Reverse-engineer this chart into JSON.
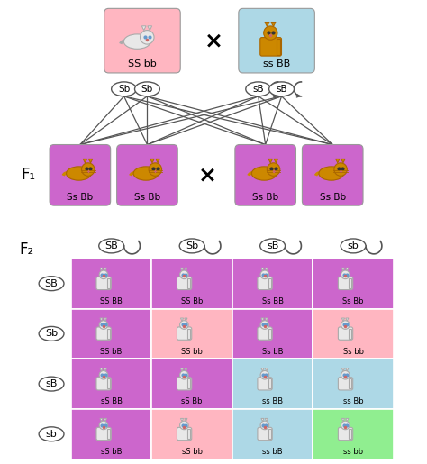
{
  "bg_color": "#ffffff",
  "parent1_color": "#ffb6c1",
  "parent2_color": "#add8e6",
  "f1_color": "#cc66cc",
  "punnett_colors": {
    "purple": "#cc66cc",
    "pink": "#ffb6c1",
    "blue": "#add8e6",
    "green": "#90ee90"
  },
  "cat_orange": "#cc8800",
  "cat_orange_dark": "#aa6600",
  "cat_white_fill": "#e8e8e8",
  "cat_white_stroke": "#aaaaaa",
  "parent1_label": "SS bb",
  "parent2_label": "ss BB",
  "f1_labels": [
    "Ss Bb",
    "Ss Bb",
    "Ss Bb",
    "Ss Bb"
  ],
  "gamete_p1": [
    "Sb",
    "Sb"
  ],
  "gamete_p2": [
    "sB",
    "sB"
  ],
  "f1_label": "F₁",
  "f2_label": "F₂",
  "col_headers": [
    "SB",
    "Sb",
    "sB",
    "sb"
  ],
  "row_headers": [
    "SB",
    "Sb",
    "sB",
    "sb"
  ],
  "punnett_labels": [
    [
      "SS BB",
      "SS Bb",
      "Ss BB",
      "Ss Bb"
    ],
    [
      "SS bB",
      "SS bb",
      "Ss bB",
      "Ss bb"
    ],
    [
      "sS BB",
      "sS Bb",
      "ss BB",
      "ss Bb"
    ],
    [
      "sS bB",
      "sS bb",
      "ss bB",
      "ss bb"
    ]
  ],
  "punnett_cell_colors": [
    [
      "purple",
      "purple",
      "purple",
      "purple"
    ],
    [
      "purple",
      "pink",
      "purple",
      "pink"
    ],
    [
      "purple",
      "purple",
      "blue",
      "blue"
    ],
    [
      "purple",
      "pink",
      "blue",
      "green"
    ]
  ]
}
